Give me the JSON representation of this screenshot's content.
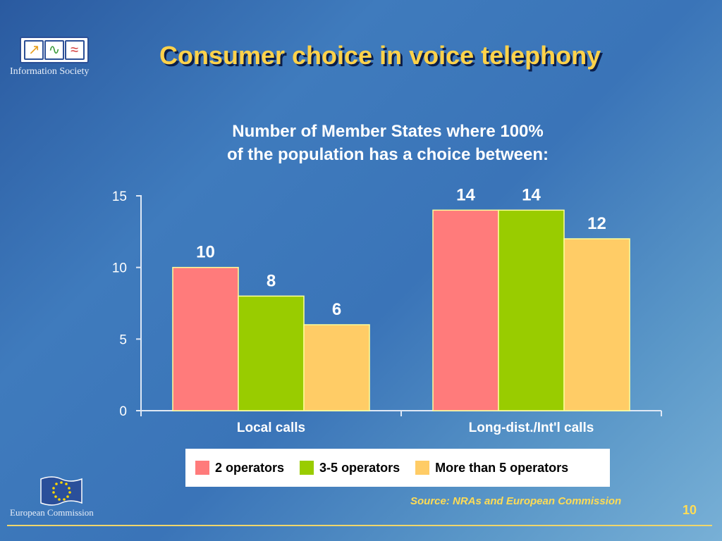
{
  "header": {
    "logo_caption": "Information Society",
    "title": "Consumer choice in voice telephony"
  },
  "footer": {
    "ec_caption": "European Commission",
    "source": "Source: NRAs and European Commission",
    "page_number": "10"
  },
  "chart_data": {
    "type": "bar",
    "title_line1": "Number of Member States where 100%",
    "title_line2": "of the population has a choice between:",
    "categories": [
      "Local calls",
      "Long-dist./Int'l calls"
    ],
    "series": [
      {
        "name": "2 operators",
        "values": [
          10,
          14
        ],
        "color": "#ff7b7b"
      },
      {
        "name": "3-5 operators",
        "values": [
          8,
          14
        ],
        "color": "#99cc00"
      },
      {
        "name": "More than 5 operators",
        "values": [
          6,
          12
        ],
        "color": "#ffcc66"
      }
    ],
    "ylim": [
      0,
      15
    ],
    "yticks": [
      0,
      5,
      10,
      15
    ],
    "grid": false,
    "legend_position": "bottom"
  }
}
